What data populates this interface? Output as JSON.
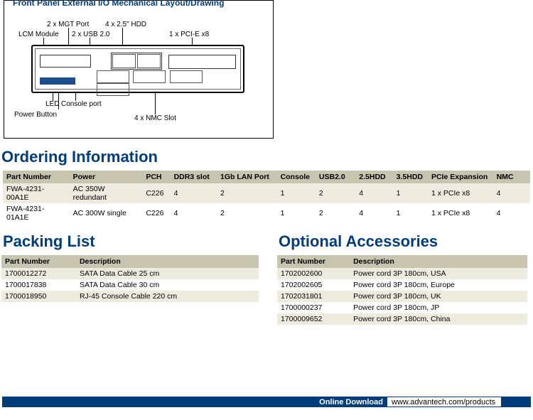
{
  "diagram": {
    "title": "Front Panel External I/O Mechanical Layout/Drawing",
    "labels": {
      "top1": "2 x MGT Port",
      "top2": "4 x 2.5\" HDD",
      "mid1": "LCM Module",
      "mid2": "2 x USB 2.0",
      "right": "1 x PCI-E x8",
      "led": "LED",
      "console": "Console port",
      "power": "Power Button",
      "nmc": "4 x NMC Slot"
    }
  },
  "ordering": {
    "title": "Ordering Information",
    "headers": [
      "Part Number",
      "Power",
      "PCH",
      "DDR3 slot",
      "1Gb LAN Port",
      "Console",
      "USB2.0",
      "2.5HDD",
      "3.5HDD",
      "PCIe Expansion",
      "NMC"
    ],
    "rows": [
      [
        "FWA-4231-00A1E",
        "AC 350W redundant",
        "C226",
        "4",
        "2",
        "1",
        "2",
        "4",
        "1",
        "1 x PCIe x8",
        "4"
      ],
      [
        "FWA-4231-01A1E",
        "AC 300W single",
        "C226",
        "4",
        "2",
        "1",
        "2",
        "4",
        "1",
        "1 x PCIe x8",
        "4"
      ]
    ],
    "col_widths": [
      "93px",
      "102px",
      "39px",
      "65px",
      "84px",
      "54px",
      "56px",
      "52px",
      "49px",
      "91px",
      "52px"
    ]
  },
  "packing": {
    "title": "Packing List",
    "headers": [
      "Part Number",
      "Description"
    ],
    "rows": [
      [
        "1700012272",
        "SATA Data Cable 25 cm"
      ],
      [
        "1700017838",
        "SATA Data Cable 30 cm"
      ],
      [
        "1700018950",
        "RJ-45 Console Cable 220 cm"
      ]
    ]
  },
  "optional": {
    "title": "Optional Accessories",
    "headers": [
      "Part Number",
      "Description"
    ],
    "rows": [
      [
        "1702002600",
        "Power cord 3P 180cm, USA"
      ],
      [
        "1702002605",
        "Power cord 3P 180cm, Europe"
      ],
      [
        "1702031801",
        "Power cord 3P 180cm, UK"
      ],
      [
        "1700000237",
        "Power cord 3P 180cm, JP"
      ],
      [
        "1700009652",
        "Power cord 3P 180cm, China"
      ]
    ]
  },
  "footer": {
    "label": "Online Download",
    "url": "www.advantech.com/products"
  },
  "colors": {
    "heading": "#003d7a",
    "table_header_bg": "#c7c4b0",
    "row_alt_bg": "#eeecdf",
    "footer_bg": "#003d7a"
  }
}
